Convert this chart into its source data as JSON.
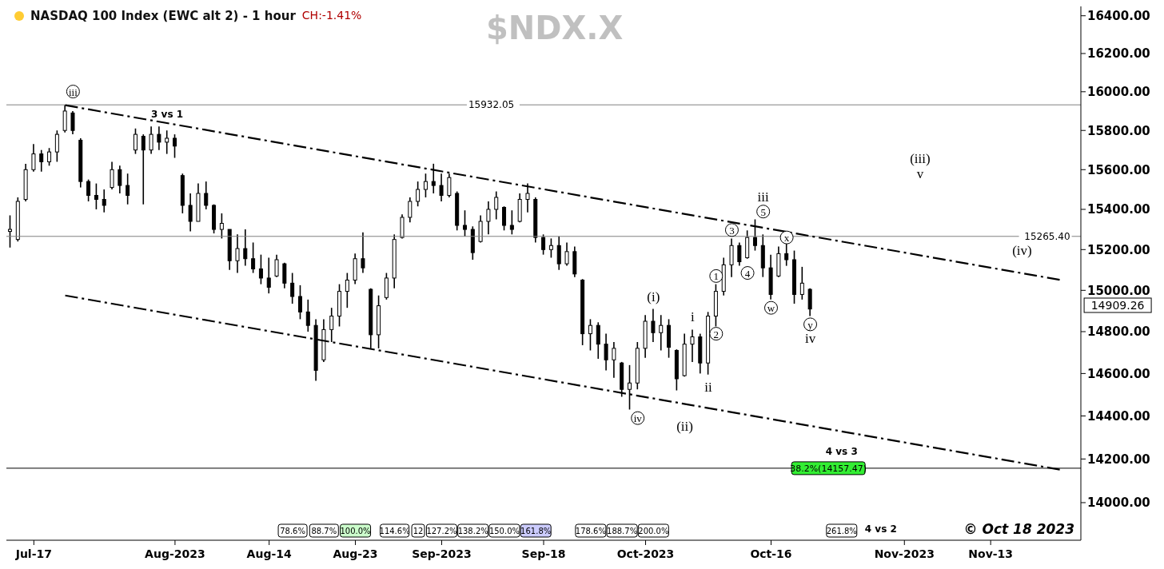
{
  "chart_data": {
    "type": "candlestick",
    "title": "NASDAQ 100 Index (EWC alt 2) - 1 hour",
    "subtitle": "$NDX.X",
    "color": "#000000",
    "log": true,
    "categories": [
      null,
      null,
      null,
      "Jul-17",
      null,
      null,
      null,
      null,
      null,
      null,
      null,
      null,
      null,
      null,
      null,
      null,
      null,
      null,
      null,
      null,
      null,
      "Aug-2023",
      null,
      null,
      null,
      null,
      null,
      null,
      null,
      null,
      null,
      null,
      null,
      "Aug-14",
      null,
      null,
      null,
      null,
      null,
      null,
      null,
      null,
      null,
      null,
      "Aug-23",
      null,
      null,
      null,
      null,
      null,
      null,
      null,
      null,
      null,
      null,
      "Sep-2023",
      null,
      null,
      null,
      null,
      null,
      null,
      null,
      null,
      null,
      null,
      null,
      null,
      "Sep-18",
      null,
      null,
      null,
      null,
      null,
      null,
      null,
      null,
      null,
      null,
      null,
      null,
      "Oct-2023",
      null,
      null,
      null,
      null,
      null,
      null,
      null,
      null,
      null,
      null,
      null,
      null,
      null,
      null,
      null,
      "Oct-16",
      null,
      null,
      null,
      null,
      null,
      null,
      null,
      null,
      null,
      null,
      null,
      null,
      null,
      null,
      null,
      null,
      "Nov-2023",
      null,
      null,
      null,
      null,
      null,
      null,
      null,
      null,
      null,
      null,
      "Nov-13",
      null,
      null,
      null,
      null,
      null,
      null,
      null,
      null,
      null,
      null,
      null
    ],
    "ohlc": [
      [
        15290,
        15370,
        15210,
        15300
      ],
      [
        15250,
        15460,
        15240,
        15440
      ],
      [
        15450,
        15630,
        15440,
        15600
      ],
      [
        15600,
        15730,
        15590,
        15680
      ],
      [
        15680,
        15700,
        15590,
        15640
      ],
      [
        15640,
        15710,
        15620,
        15690
      ],
      [
        15690,
        15800,
        15640,
        15780
      ],
      [
        15800,
        15932.05,
        15790,
        15900
      ],
      [
        15890,
        15900,
        15780,
        15800
      ],
      [
        15750,
        15760,
        15510,
        15540
      ],
      [
        15540,
        15550,
        15440,
        15470
      ],
      [
        15470,
        15530,
        15400,
        15450
      ],
      [
        15450,
        15500,
        15385,
        15420
      ],
      [
        15510,
        15640,
        15500,
        15600
      ],
      [
        15600,
        15620,
        15480,
        15520
      ],
      [
        15520,
        15580,
        15425,
        15470
      ],
      [
        15700,
        15810,
        15680,
        15780
      ],
      [
        15770,
        15780,
        15425,
        15700
      ],
      [
        15700,
        15820,
        15680,
        15780
      ],
      [
        15780,
        15820,
        15700,
        15740
      ],
      [
        15740,
        15800,
        15680,
        15760
      ],
      [
        15760,
        15780,
        15660,
        15720
      ],
      [
        15570,
        15580,
        15380,
        15420
      ],
      [
        15420,
        15480,
        15290,
        15340
      ],
      [
        15340,
        15530,
        15340,
        15480
      ],
      [
        15480,
        15540,
        15400,
        15420
      ],
      [
        15420,
        15425,
        15280,
        15300
      ],
      [
        15300,
        15380,
        15255,
        15330
      ],
      [
        15300,
        15300,
        15100,
        15145
      ],
      [
        15145,
        15275,
        15085,
        15205
      ],
      [
        15205,
        15300,
        15120,
        15155
      ],
      [
        15155,
        15235,
        15085,
        15105
      ],
      [
        15105,
        15175,
        15030,
        15060
      ],
      [
        15060,
        15160,
        14985,
        15015
      ],
      [
        15070,
        15175,
        15065,
        15150
      ],
      [
        15130,
        15135,
        15010,
        15035
      ],
      [
        15035,
        15085,
        14935,
        14970
      ],
      [
        14970,
        15025,
        14860,
        14895
      ],
      [
        14895,
        14955,
        14800,
        14830
      ],
      [
        14830,
        14860,
        14565,
        14615
      ],
      [
        14665,
        14860,
        14655,
        14810
      ],
      [
        14810,
        14915,
        14750,
        14875
      ],
      [
        14875,
        15030,
        14825,
        14995
      ],
      [
        14995,
        15085,
        14915,
        15050
      ],
      [
        15050,
        15180,
        15030,
        15155
      ],
      [
        15155,
        15285,
        15085,
        15110
      ],
      [
        15005,
        15010,
        14720,
        14785
      ],
      [
        14785,
        14975,
        14720,
        14925
      ],
      [
        14965,
        15085,
        14955,
        15060
      ],
      [
        15060,
        15275,
        15010,
        15250
      ],
      [
        15260,
        15375,
        15255,
        15360
      ],
      [
        15360,
        15460,
        15335,
        15440
      ],
      [
        15440,
        15540,
        15415,
        15500
      ],
      [
        15500,
        15580,
        15460,
        15540
      ],
      [
        15540,
        15630,
        15480,
        15520
      ],
      [
        15520,
        15580,
        15440,
        15470
      ],
      [
        15470,
        15580,
        15460,
        15560
      ],
      [
        15480,
        15490,
        15295,
        15320
      ],
      [
        15320,
        15395,
        15265,
        15300
      ],
      [
        15300,
        15315,
        15150,
        15185
      ],
      [
        15240,
        15370,
        15235,
        15340
      ],
      [
        15340,
        15440,
        15275,
        15400
      ],
      [
        15400,
        15490,
        15350,
        15460
      ],
      [
        15410,
        15415,
        15295,
        15320
      ],
      [
        15320,
        15395,
        15275,
        15300
      ],
      [
        15340,
        15480,
        15335,
        15450
      ],
      [
        15450,
        15530,
        15385,
        15480
      ],
      [
        15450,
        15460,
        15235,
        15260
      ],
      [
        15260,
        15275,
        15175,
        15200
      ],
      [
        15200,
        15255,
        15160,
        15220
      ],
      [
        15220,
        15265,
        15100,
        15130
      ],
      [
        15130,
        15235,
        15120,
        15190
      ],
      [
        15190,
        15215,
        15065,
        15080
      ],
      [
        15050,
        15055,
        14735,
        14790
      ],
      [
        14790,
        14860,
        14710,
        14830
      ],
      [
        14830,
        14845,
        14670,
        14740
      ],
      [
        14740,
        14790,
        14615,
        14665
      ],
      [
        14665,
        14750,
        14580,
        14720
      ],
      [
        14650,
        14655,
        14490,
        14525
      ],
      [
        14525,
        14640,
        14430,
        14555
      ],
      [
        14555,
        14750,
        14525,
        14720
      ],
      [
        14720,
        14880,
        14675,
        14850
      ],
      [
        14850,
        14910,
        14750,
        14795
      ],
      [
        14795,
        14880,
        14710,
        14830
      ],
      [
        14830,
        14860,
        14675,
        14725
      ],
      [
        14710,
        14715,
        14520,
        14575
      ],
      [
        14590,
        14790,
        14585,
        14740
      ],
      [
        14740,
        14810,
        14655,
        14775
      ],
      [
        14775,
        14790,
        14600,
        14650
      ],
      [
        14650,
        14895,
        14595,
        14875
      ],
      [
        14875,
        15030,
        14825,
        14995
      ],
      [
        14995,
        15160,
        14975,
        15125
      ],
      [
        15125,
        15255,
        15065,
        15220
      ],
      [
        15220,
        15235,
        15120,
        15140
      ],
      [
        15160,
        15295,
        15155,
        15260
      ],
      [
        15260,
        15350,
        15195,
        15220
      ],
      [
        15220,
        15275,
        15065,
        15110
      ],
      [
        15110,
        15175,
        14955,
        14980
      ],
      [
        15070,
        15215,
        15065,
        15180
      ],
      [
        15180,
        15235,
        15120,
        15150
      ],
      [
        15150,
        15195,
        14935,
        14980
      ],
      [
        14980,
        15115,
        14955,
        15035
      ],
      [
        15005,
        15010,
        14875,
        14909.26
      ],
      null,
      null,
      null,
      null,
      null,
      null,
      null,
      null,
      null,
      null,
      null,
      null,
      null,
      null,
      null,
      null,
      null,
      null,
      null,
      null,
      null,
      null,
      null,
      null,
      null,
      null,
      null,
      null,
      null,
      null,
      null,
      null,
      null,
      null
    ],
    "series": [
      {
        "type": "line",
        "color": "#000000",
        "line_style": "dashed",
        "values": [
          null,
          null,
          null,
          null,
          null,
          null,
          null,
          15930,
          null,
          null,
          null,
          null,
          null,
          null,
          null,
          null,
          null,
          null,
          null,
          null,
          null,
          null,
          null,
          null,
          null,
          null,
          null,
          null,
          null,
          null,
          null,
          null,
          null,
          null,
          null,
          null,
          null,
          null,
          null,
          null,
          null,
          null,
          null,
          null,
          null,
          null,
          null,
          null,
          null,
          null,
          null,
          null,
          null,
          null,
          null,
          null,
          null,
          null,
          null,
          null,
          null,
          null,
          null,
          null,
          null,
          null,
          null,
          null,
          null,
          null,
          null,
          null,
          null,
          null,
          null,
          null,
          null,
          null,
          null,
          null,
          null,
          null,
          null,
          null,
          null,
          null,
          null,
          null,
          null,
          null,
          null,
          null,
          null,
          null,
          null,
          null,
          null,
          null,
          null,
          null,
          null,
          null,
          null,
          null,
          null,
          null,
          null,
          null,
          null,
          null,
          null,
          null,
          null,
          null,
          null,
          null,
          null,
          null,
          null,
          null,
          null,
          null,
          null,
          null,
          null,
          null,
          null,
          null,
          null,
          null,
          null,
          null,
          null,
          null,
          15050,
          null,
          null
        ]
      },
      {
        "type": "line",
        "color": "#000000",
        "line_style": "dashed",
        "values": [
          null,
          null,
          null,
          null,
          null,
          null,
          null,
          14975,
          null,
          null,
          null,
          null,
          null,
          null,
          null,
          null,
          null,
          null,
          null,
          null,
          null,
          null,
          null,
          null,
          null,
          null,
          null,
          null,
          null,
          null,
          null,
          null,
          null,
          null,
          null,
          null,
          null,
          null,
          null,
          null,
          null,
          null,
          null,
          null,
          null,
          null,
          null,
          null,
          null,
          null,
          null,
          null,
          null,
          null,
          null,
          null,
          null,
          null,
          null,
          null,
          null,
          null,
          null,
          null,
          null,
          null,
          null,
          null,
          null,
          null,
          null,
          null,
          null,
          null,
          null,
          null,
          null,
          null,
          null,
          null,
          null,
          null,
          null,
          null,
          null,
          null,
          null,
          null,
          null,
          null,
          null,
          null,
          null,
          null,
          null,
          null,
          null,
          null,
          null,
          null,
          null,
          null,
          null,
          null,
          null,
          null,
          null,
          null,
          null,
          null,
          null,
          null,
          null,
          null,
          null,
          null,
          null,
          null,
          null,
          null,
          null,
          null,
          null,
          null,
          null,
          null,
          null,
          null,
          null,
          null,
          null,
          null,
          null,
          null,
          14150,
          null,
          null
        ]
      }
    ],
    "ylim": [
      13830,
      16450
    ],
    "yticks": [
      {
        "value": 14000,
        "label": "14000.00"
      },
      {
        "value": 14200,
        "label": "14200.00"
      },
      {
        "value": 14400,
        "label": "14400.00"
      },
      {
        "value": 14600,
        "label": "14600.00"
      },
      {
        "value": 14800,
        "label": "14800.00"
      },
      {
        "value": 15000,
        "label": "15000.00"
      },
      {
        "value": 15200,
        "label": "15200.00"
      },
      {
        "value": 15400,
        "label": "15400.00"
      },
      {
        "value": 15600,
        "label": "15600.00"
      },
      {
        "value": 15800,
        "label": "15800.00"
      },
      {
        "value": 16000,
        "label": "16000.00"
      },
      {
        "value": 16200,
        "label": "16200.00"
      },
      {
        "value": 16400,
        "label": "16400.00"
      }
    ],
    "ref_lines": [
      {
        "axis": "y",
        "value": 15932.05,
        "label": "15932.05",
        "color": "#808080",
        "line_style": "solid"
      },
      {
        "axis": "y",
        "value": 15265.4,
        "label": "15265.40",
        "color": "#808080",
        "line_style": "solid"
      },
      {
        "axis": "y",
        "value": 14157.47,
        "label": "38.2%(14157.47)",
        "color": "#000000",
        "line_style": "solid"
      }
    ],
    "annotations": [
      "CH:-1.41%",
      "© Oct 18 2023",
      {
        "text": "iii",
        "y": 16001
      },
      "3 vs 1",
      "(iii)",
      "v",
      "iii",
      {
        "text": "5",
        "y": 15389
      },
      {
        "text": "3",
        "y": 15297
      },
      {
        "text": "x",
        "y": 15260
      },
      "(iv)",
      {
        "text": "4",
        "y": 15085
      },
      {
        "text": "1",
        "y": 15070
      },
      "(i)",
      {
        "text": "w",
        "y": 14915
      },
      "i",
      {
        "text": "y",
        "y": 14835
      },
      {
        "text": "2",
        "y": 14790
      },
      "iv",
      "ii",
      "(ii)",
      {
        "text": "iv",
        "y": 14390
      },
      "4 vs 3",
      "78.6%",
      "88.7%",
      "100.0%",
      "114.6%",
      "12",
      "127.2%",
      "138.2%",
      "150.0%",
      "161.8%",
      "178.6%",
      "188.7%",
      "200.0%",
      "261.8%",
      "4 vs 2",
      "14909.26"
    ]
  }
}
